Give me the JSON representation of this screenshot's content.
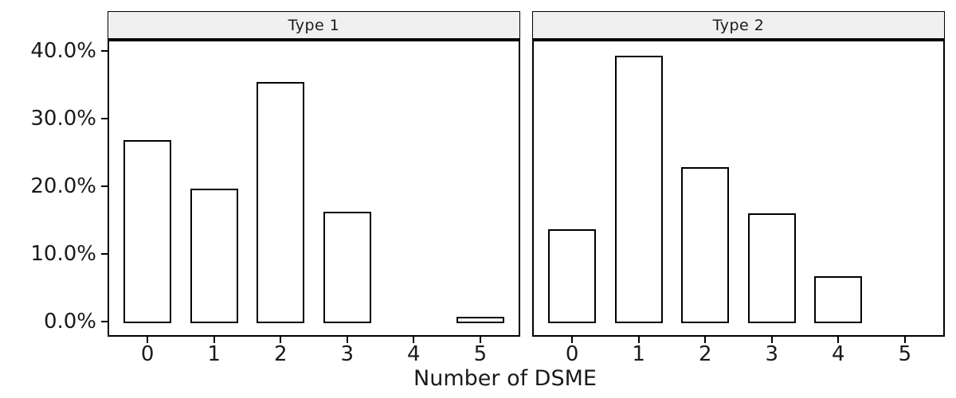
{
  "chart_data": {
    "type": "bar",
    "title": "",
    "xlabel": "Number of DSME",
    "ylabel": "",
    "categories": [
      "0",
      "1",
      "2",
      "3",
      "4",
      "5"
    ],
    "facets": [
      {
        "label": "Type 1",
        "values": [
          27.0,
          19.9,
          35.6,
          16.5,
          0,
          0.9
        ]
      },
      {
        "label": "Type 2",
        "values": [
          13.9,
          39.5,
          23.1,
          16.2,
          6.9,
          0
        ]
      }
    ],
    "y_ticks": [
      {
        "value": 0,
        "label": "0.0%"
      },
      {
        "value": 10,
        "label": "10.0%"
      },
      {
        "value": 20,
        "label": "20.0%"
      },
      {
        "value": 30,
        "label": "30.0%"
      },
      {
        "value": 40,
        "label": "40.0%"
      }
    ],
    "ylim": [
      -2,
      41.5
    ],
    "grid": false,
    "legend": "none",
    "colors": {
      "bar_fill": "#ffffff",
      "bar_stroke": "#000000",
      "strip_bg": "#f0f0f0",
      "spine": "#000000",
      "text": "#1a1a1a"
    }
  }
}
